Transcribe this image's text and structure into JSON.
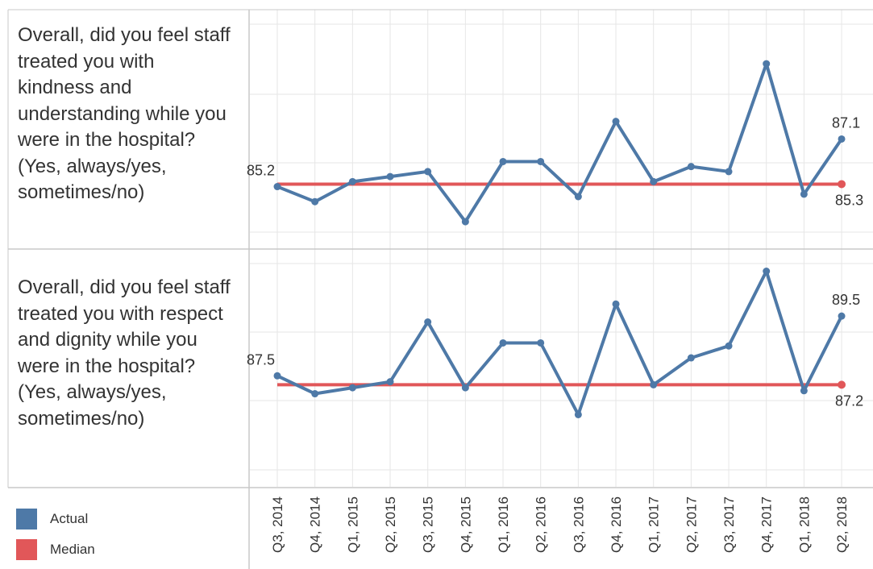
{
  "colors": {
    "actual": "#4e79a7",
    "median": "#e15759",
    "grid": "#e6e6e6",
    "border": "#c8c8c8"
  },
  "legend": [
    {
      "label": "Actual",
      "color": "#4e79a7"
    },
    {
      "label": "Median",
      "color": "#e15759"
    }
  ],
  "chart_data": [
    {
      "type": "line",
      "row_label": "Overall, did you feel staff treated you with kindness and understanding while you were in the hospital? (Yes, always/yes, sometimes/no)",
      "categories": [
        "Q3, 2014",
        "Q4, 2014",
        "Q1, 2015",
        "Q2, 2015",
        "Q3, 2015",
        "Q4, 2015",
        "Q1, 2016",
        "Q2, 2016",
        "Q3, 2016",
        "Q4, 2016",
        "Q1, 2017",
        "Q2, 2017",
        "Q3, 2017",
        "Q4, 2017",
        "Q1, 2018",
        "Q2, 2018"
      ],
      "series": [
        {
          "name": "Actual",
          "values": [
            85.2,
            84.6,
            85.4,
            85.6,
            85.8,
            83.8,
            86.2,
            86.2,
            84.8,
            87.8,
            85.4,
            86.0,
            85.8,
            90.1,
            84.9,
            87.1
          ]
        },
        {
          "name": "Median",
          "values": [
            85.3,
            85.3,
            85.3,
            85.3,
            85.3,
            85.3,
            85.3,
            85.3,
            85.3,
            85.3,
            85.3,
            85.3,
            85.3,
            85.3,
            85.3,
            85.3
          ]
        }
      ],
      "annotations": {
        "first_actual": "85.2",
        "last_actual": "87.1",
        "last_median": "85.3"
      },
      "ylim": [
        83.0,
        92.0
      ],
      "grid": true
    },
    {
      "type": "line",
      "row_label": "Overall, did you feel staff treated you with respect and dignity while you were in the hospital? (Yes, always/yes, sometimes/no)",
      "categories": [
        "Q3, 2014",
        "Q4, 2014",
        "Q1, 2015",
        "Q2, 2015",
        "Q3, 2015",
        "Q4, 2015",
        "Q1, 2016",
        "Q2, 2016",
        "Q3, 2016",
        "Q4, 2016",
        "Q1, 2017",
        "Q2, 2017",
        "Q3, 2017",
        "Q4, 2017",
        "Q1, 2018",
        "Q2, 2018"
      ],
      "series": [
        {
          "name": "Actual",
          "values": [
            87.5,
            86.9,
            87.1,
            87.3,
            89.3,
            87.1,
            88.6,
            88.6,
            86.2,
            89.9,
            87.2,
            88.1,
            88.5,
            91.0,
            87.0,
            89.5
          ]
        },
        {
          "name": "Median",
          "values": [
            87.2,
            87.2,
            87.2,
            87.2,
            87.2,
            87.2,
            87.2,
            87.2,
            87.2,
            87.2,
            87.2,
            87.2,
            87.2,
            87.2,
            87.2,
            87.2
          ]
        }
      ],
      "annotations": {
        "first_actual": "87.5",
        "last_actual": "89.5",
        "last_median": "87.2"
      },
      "ylim": [
        84.0,
        91.5
      ],
      "grid": true
    }
  ]
}
